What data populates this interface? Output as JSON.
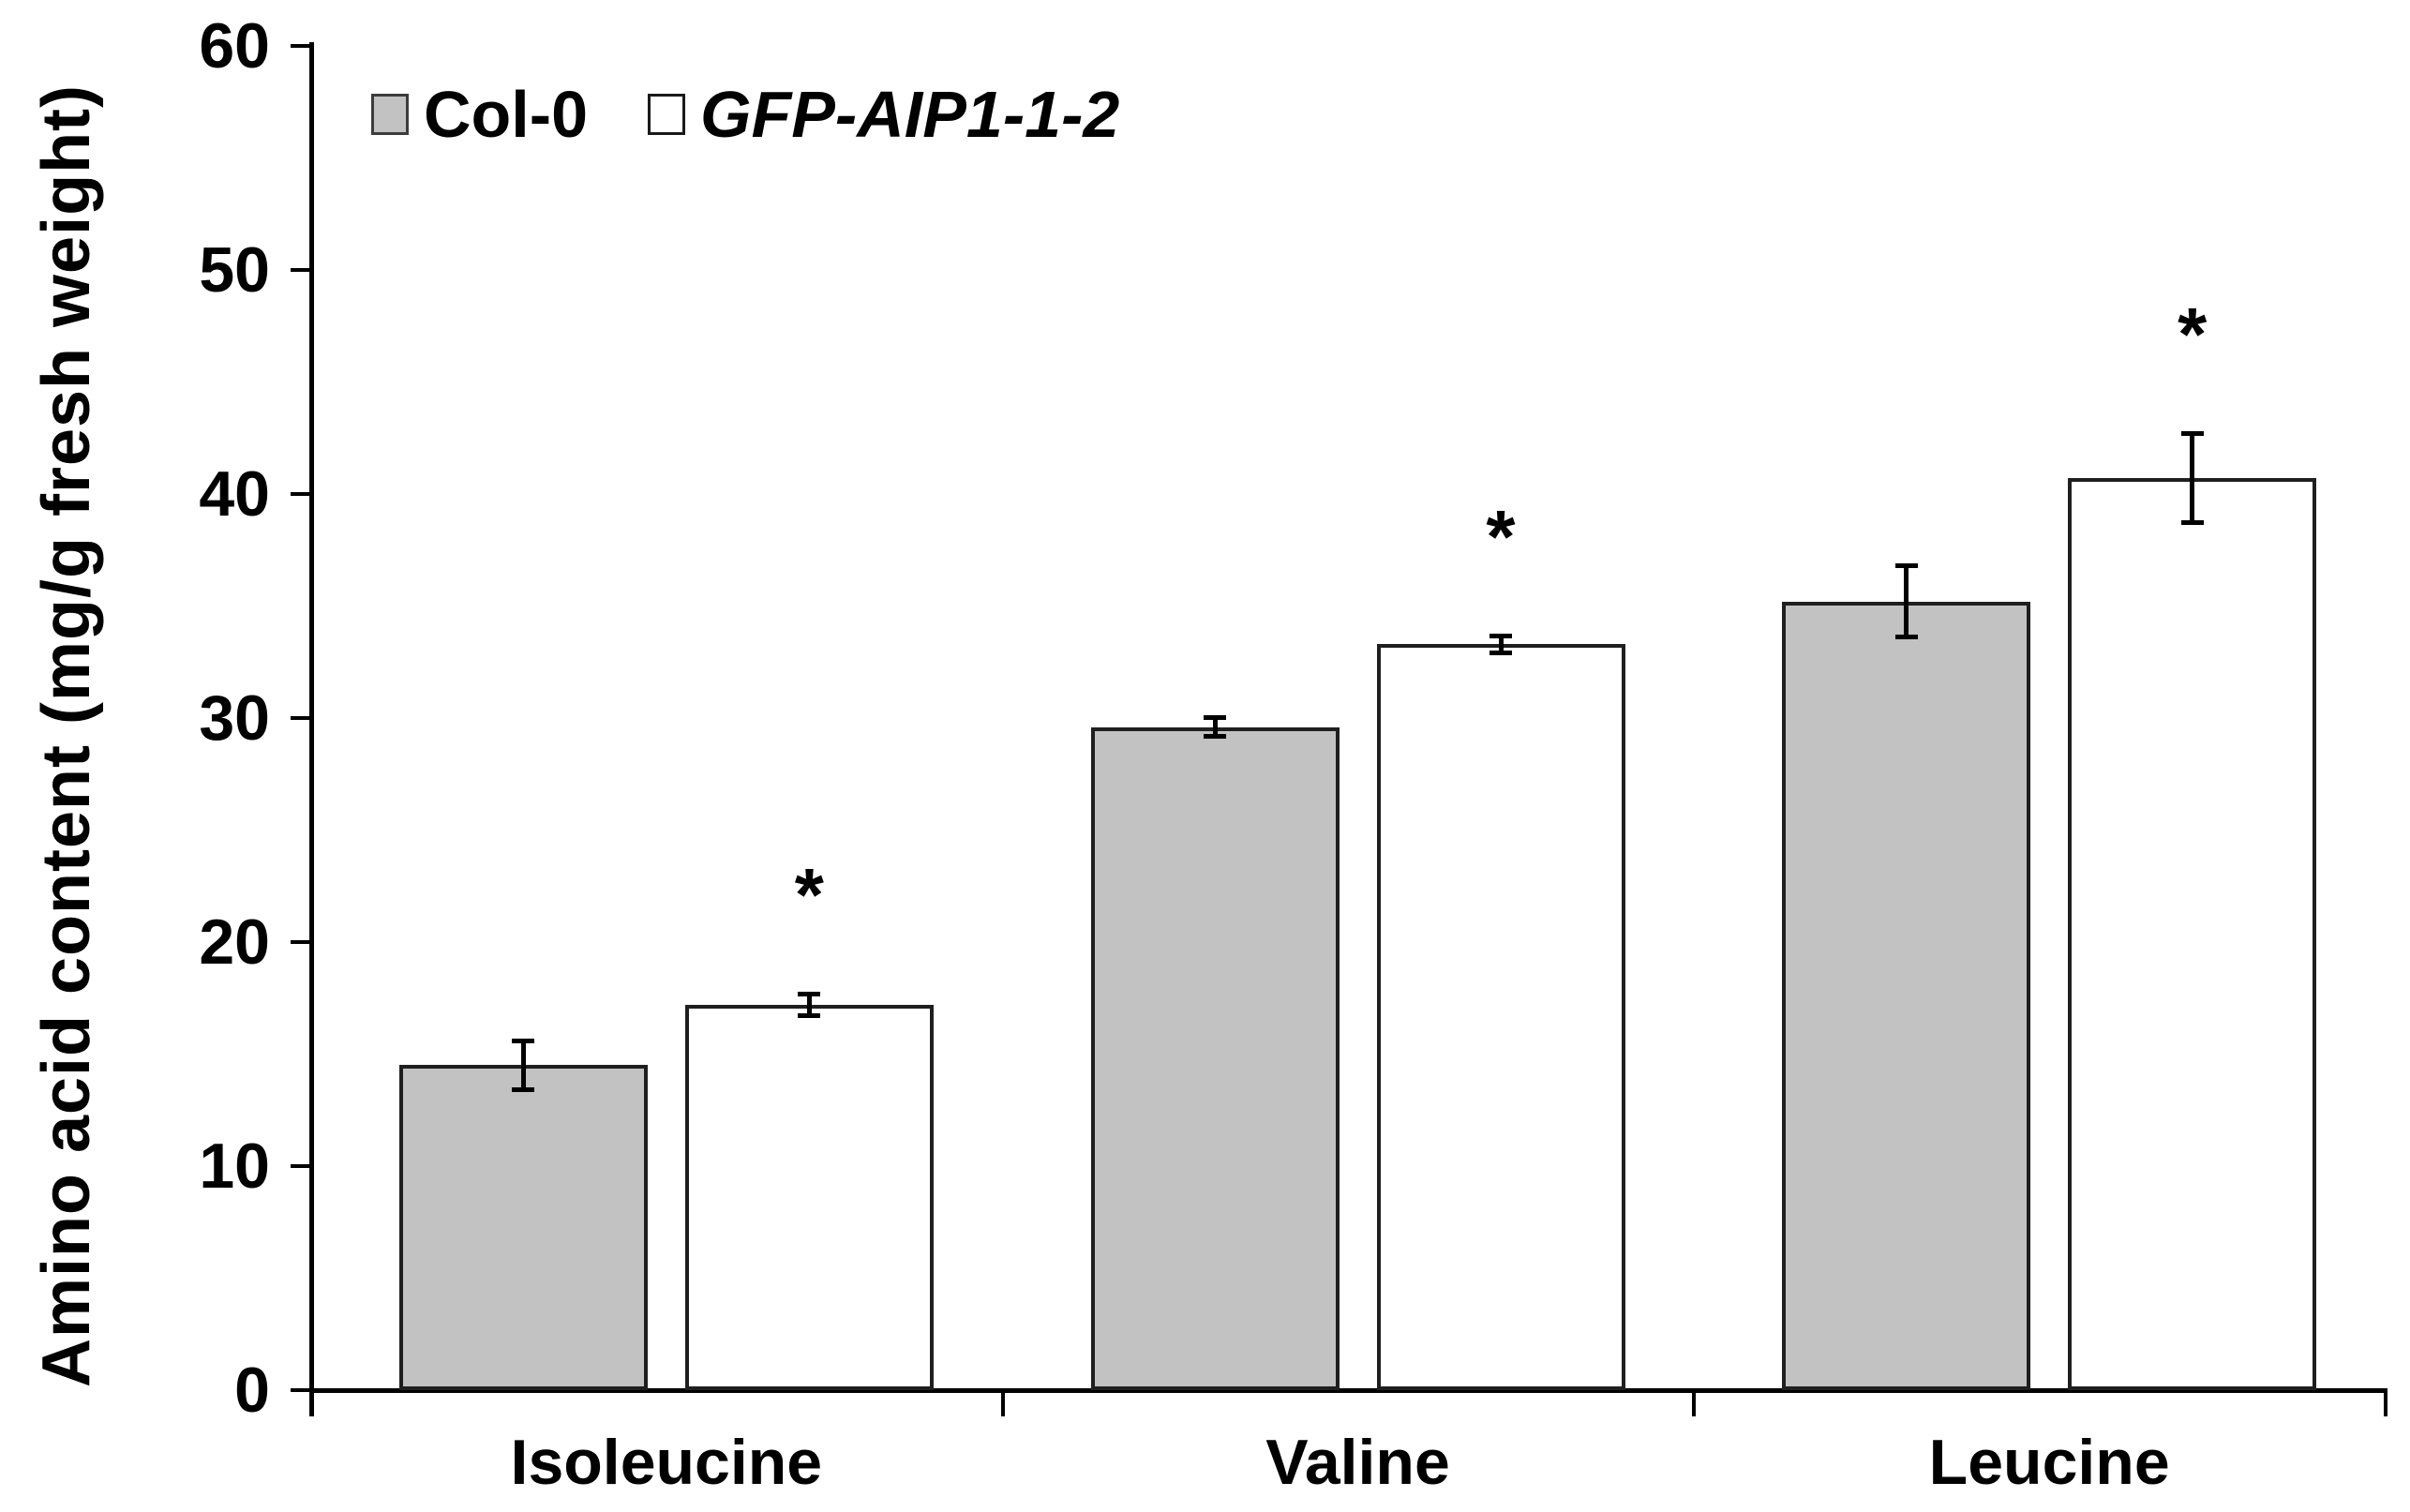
{
  "figure": {
    "y_axis_title": "Amino acid content (mg/g fresh weight)",
    "significance_symbol": "*",
    "colors": {
      "background": "#ffffff",
      "col0_fill": "#c2c2c2",
      "gfp_fill": "#ffffff",
      "bar_border": "#1f1f1f",
      "axis": "#000000",
      "error_bar": "#000000",
      "text": "#000000"
    }
  },
  "legend": {
    "items": [
      {
        "label": "Col-0",
        "swatch_fill": "#c2c2c2",
        "italic": false
      },
      {
        "label": "GFP-AIP1-1-2",
        "swatch_fill": "#ffffff",
        "italic": true
      }
    ]
  },
  "chart_data": {
    "type": "bar",
    "title": "",
    "categories": [
      "Isoleucine",
      "Valine",
      "Leucine"
    ],
    "series": [
      {
        "name": "Col-0",
        "fill": "#c2c2c2",
        "values": [
          14.5,
          29.6,
          35.2
        ],
        "errors": [
          1.1,
          0.45,
          1.6
        ],
        "significant": [
          false,
          false,
          false
        ]
      },
      {
        "name": "GFP-AIP1-1-2",
        "fill": "#ffffff",
        "values": [
          17.2,
          33.3,
          40.7
        ],
        "errors": [
          0.5,
          0.4,
          2.0
        ],
        "significant": [
          true,
          true,
          true
        ]
      }
    ],
    "xlabel": "",
    "ylabel": "Amino acid content (mg/g fresh weight)",
    "ylim": [
      0,
      60
    ],
    "ytick_step": 10,
    "yticks": [
      0,
      10,
      20,
      30,
      40,
      50,
      60
    ],
    "grid": false,
    "legend_position": "top-left-inside",
    "error_bars": true,
    "significance_marks_on": "GFP-AIP1-1-2"
  }
}
